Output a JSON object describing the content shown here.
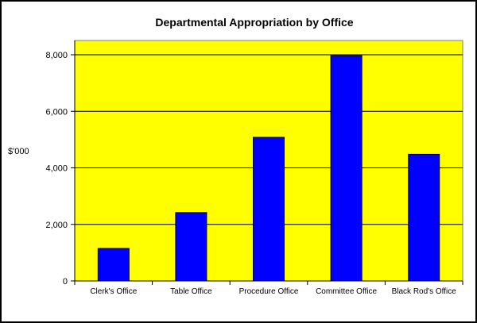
{
  "chart_data": {
    "type": "bar",
    "title": "Departmental Appropriation by Office",
    "xlabel": "",
    "ylabel": "$'000",
    "categories": [
      "Clerk's Office",
      "Table Office",
      "Procedure Office",
      "Committee Office",
      "Black Rod's Office"
    ],
    "values": [
      1150,
      2420,
      5080,
      7970,
      4480
    ],
    "ylim": [
      0,
      8000
    ],
    "yticks": [
      "0",
      "2,000",
      "4,000",
      "6,000",
      "8,000"
    ],
    "ytick_values": [
      0,
      2000,
      4000,
      6000,
      8000
    ],
    "grid": "horizontal",
    "legend": "none",
    "colors": {
      "bar": "#0000ff",
      "plot_background": "#ffff00",
      "gridline": "#000000"
    }
  }
}
